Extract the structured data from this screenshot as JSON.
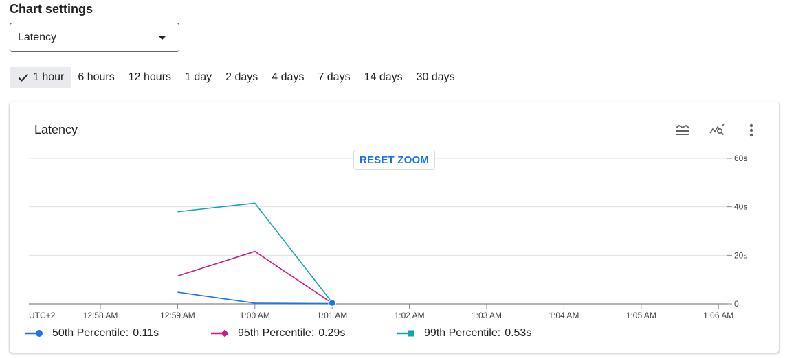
{
  "settings": {
    "heading": "Chart settings",
    "metric_select": {
      "value": "Latency"
    }
  },
  "time_ranges": {
    "selected_index": 0,
    "options": [
      "1 hour",
      "6 hours",
      "12 hours",
      "1 day",
      "2 days",
      "4 days",
      "7 days",
      "14 days",
      "30 days"
    ]
  },
  "card": {
    "title": "Latency",
    "reset_zoom_label": "RESET ZOOM",
    "icons": [
      "legend-toggle-icon",
      "zoom-chart-icon",
      "more-vert-icon"
    ]
  },
  "chart_data": {
    "type": "line",
    "title": "Latency",
    "timezone_label": "UTC+2",
    "x": [
      "12:59 AM",
      "1:00 AM",
      "1:01 AM"
    ],
    "x_ticks": [
      "12:58 AM",
      "12:59 AM",
      "1:00 AM",
      "1:01 AM",
      "1:02 AM",
      "1:03 AM",
      "1:04 AM",
      "1:05 AM",
      "1:06 AM"
    ],
    "y_ticks": [
      "0",
      "20s",
      "40s",
      "60s"
    ],
    "ylim": [
      0,
      60
    ],
    "y_unit": "s",
    "grid": true,
    "legend_position": "bottom",
    "series": [
      {
        "name": "50th Percentile",
        "current": "0.11s",
        "color": "#1a73e8",
        "marker": "circle",
        "values": [
          4.8,
          0.3,
          0.11
        ]
      },
      {
        "name": "95th Percentile",
        "current": "0.29s",
        "color": "#d01884",
        "marker": "diamond",
        "values": [
          11.5,
          21.6,
          0.29
        ]
      },
      {
        "name": "99th Percentile",
        "current": "0.53s",
        "color": "#12a4af",
        "marker": "square",
        "values": [
          38.0,
          41.5,
          0.53
        ]
      }
    ]
  }
}
